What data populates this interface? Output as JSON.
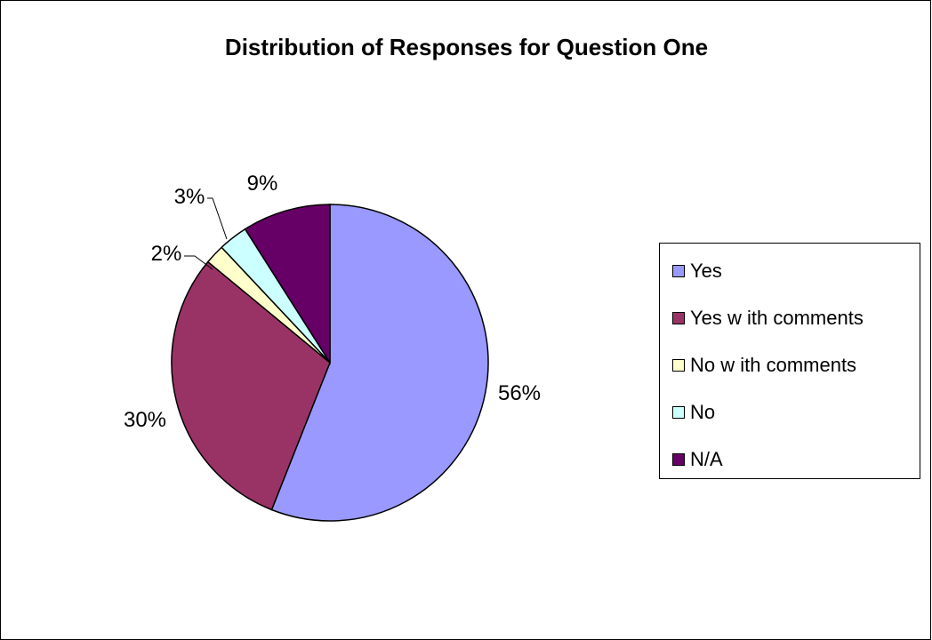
{
  "chart_data": {
    "type": "pie",
    "title": "Distribution of Responses for Question One",
    "categories": [
      "Yes",
      "Yes with comments",
      "No with comments",
      "No",
      "N/A"
    ],
    "legend_labels": [
      "Yes",
      "Yes w ith comments",
      "No w ith comments",
      "No",
      "N/A"
    ],
    "values": [
      56,
      30,
      2,
      3,
      9
    ],
    "data_labels": [
      "56%",
      "30%",
      "2%",
      "3%",
      "9%"
    ],
    "colors": [
      "#9999ff",
      "#993366",
      "#ffffcc",
      "#ccffff",
      "#660066"
    ],
    "legend_position": "right"
  }
}
